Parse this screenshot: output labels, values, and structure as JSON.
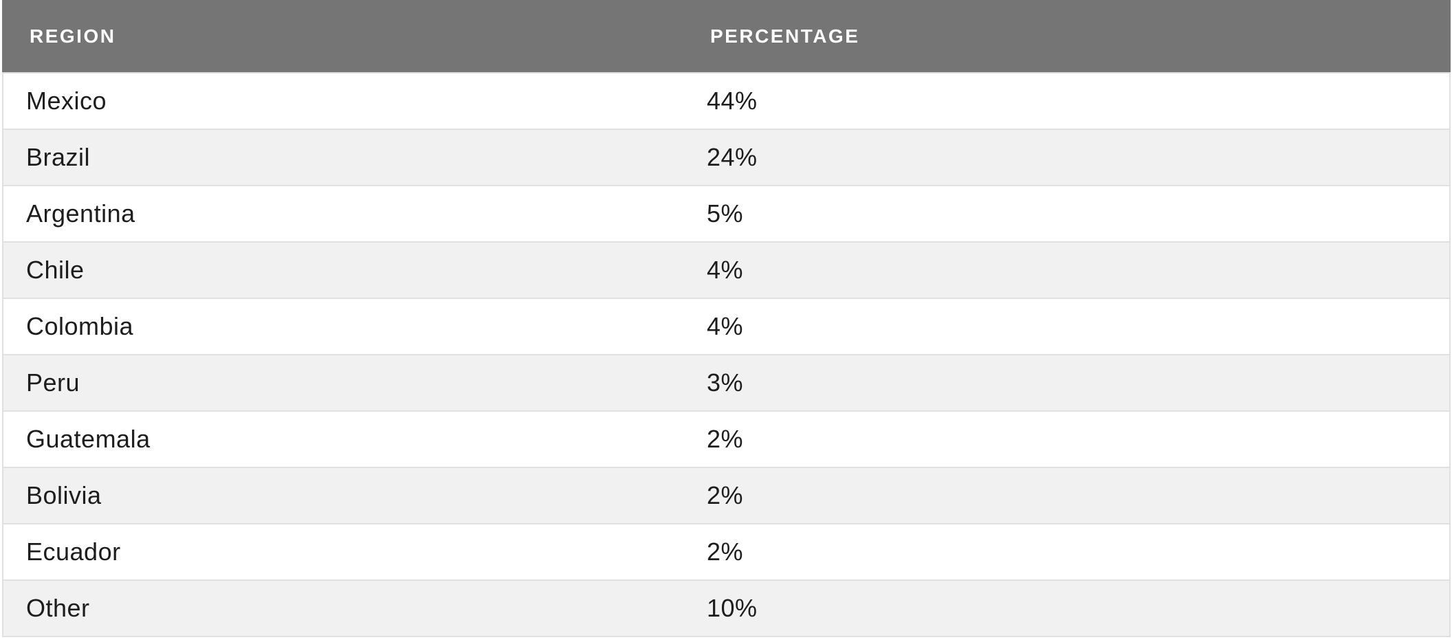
{
  "colors": {
    "header_bg": "#757575",
    "header_text": "#ffffff",
    "row_bg": "#ffffff",
    "row_alt_bg": "#f1f1f1",
    "border": "#e0e0e0",
    "text": "#1d1d1d"
  },
  "table": {
    "columns": [
      {
        "key": "region",
        "label": "REGION"
      },
      {
        "key": "percentage",
        "label": "PERCENTAGE"
      }
    ],
    "rows": [
      {
        "region": "Mexico",
        "percentage": "44%"
      },
      {
        "region": "Brazil",
        "percentage": "24%"
      },
      {
        "region": "Argentina",
        "percentage": "5%"
      },
      {
        "region": "Chile",
        "percentage": "4%"
      },
      {
        "region": "Colombia",
        "percentage": "4%"
      },
      {
        "region": "Peru",
        "percentage": "3%"
      },
      {
        "region": "Guatemala",
        "percentage": "2%"
      },
      {
        "region": "Bolivia",
        "percentage": "2%"
      },
      {
        "region": "Ecuador",
        "percentage": "2%"
      },
      {
        "region": "Other",
        "percentage": "10%"
      }
    ]
  },
  "chart_data": {
    "type": "table",
    "title": "",
    "columns": [
      "REGION",
      "PERCENTAGE"
    ],
    "categories": [
      "Mexico",
      "Brazil",
      "Argentina",
      "Chile",
      "Colombia",
      "Peru",
      "Guatemala",
      "Bolivia",
      "Ecuador",
      "Other"
    ],
    "values": [
      44,
      24,
      5,
      4,
      4,
      3,
      2,
      2,
      2,
      10
    ],
    "unit": "%"
  }
}
